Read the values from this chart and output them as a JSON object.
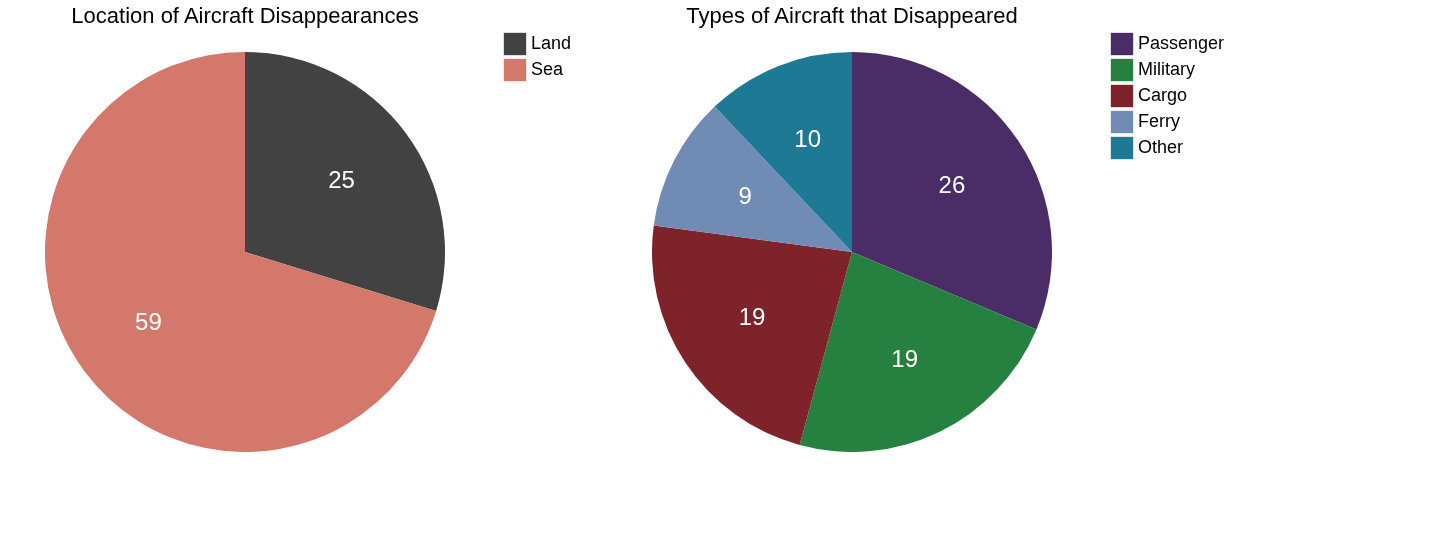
{
  "chart_data": [
    {
      "type": "pie",
      "title": "Location of Aircraft Disappearances",
      "categories": [
        "Land",
        "Sea"
      ],
      "values": [
        25,
        59
      ],
      "colors": [
        "#424242",
        "#d4786b"
      ],
      "data_labels": true,
      "legend": "right"
    },
    {
      "type": "pie",
      "title": "Types of Aircraft that Disappeared",
      "categories": [
        "Passenger",
        "Military",
        "Cargo",
        "Ferry",
        "Other"
      ],
      "values": [
        26,
        19,
        19,
        9,
        10
      ],
      "colors": [
        "#4a2d66",
        "#268040",
        "#7e232a",
        "#718cb4",
        "#1e7a94"
      ],
      "data_labels": true,
      "legend": "right"
    }
  ]
}
